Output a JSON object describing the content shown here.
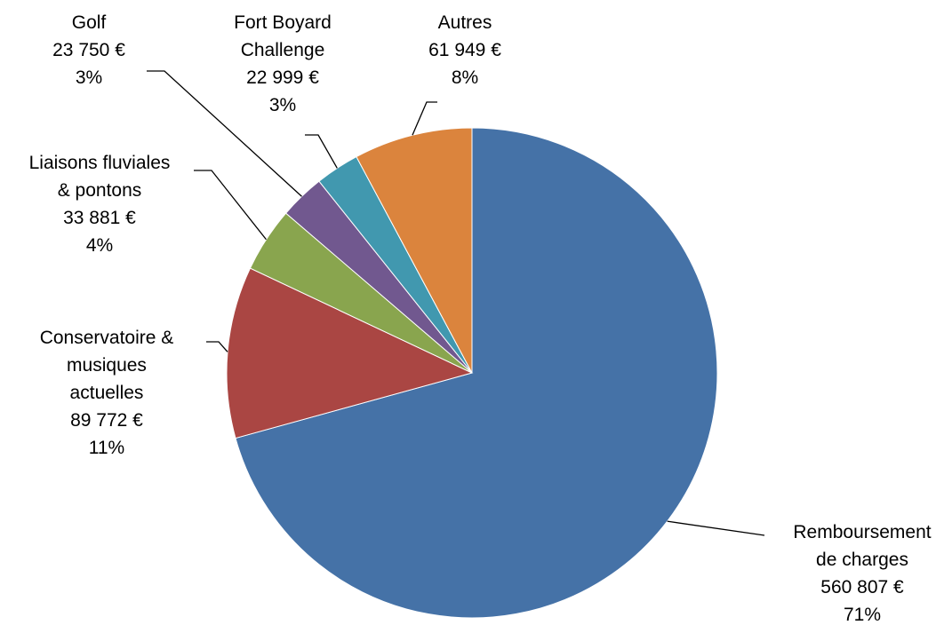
{
  "chart_data": {
    "type": "pie",
    "categories": [
      "Remboursement\nde charges",
      "Conservatoire &\nmusiques\nactuelles",
      "Liaisons fluviales\n& pontons",
      "Golf",
      "Fort Boyard\nChallenge",
      "Autres"
    ],
    "values": [
      560807,
      89772,
      33881,
      23750,
      22999,
      61949
    ],
    "value_labels": [
      "560 807 €",
      "89 772 €",
      "33 881 €",
      "23 750 €",
      "22 999 €",
      "61 949 €"
    ],
    "percent_labels": [
      "71%",
      "11%",
      "4%",
      "3%",
      "3%",
      "8%"
    ],
    "colors": [
      "#4572A7",
      "#AA4643",
      "#89A54E",
      "#71588F",
      "#4198AF",
      "#DB843D"
    ]
  }
}
